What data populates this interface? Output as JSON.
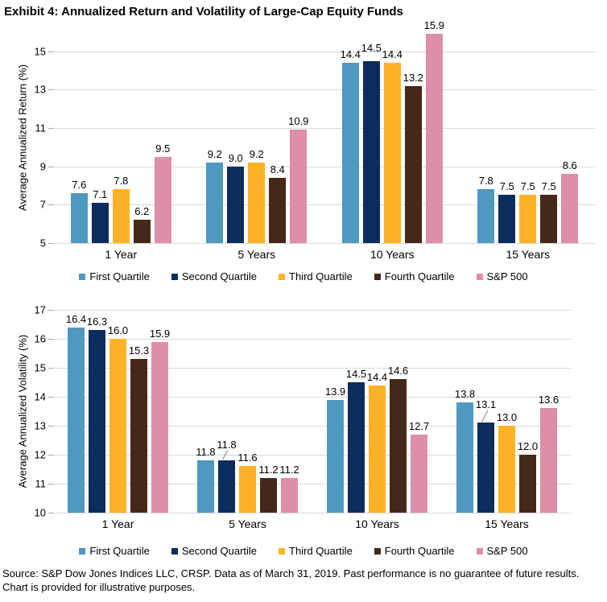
{
  "title": "Exhibit 4: Annualized Return and Volatility of Large-Cap Equity Funds",
  "source_note": "Source: S&P Dow Jones Indices LLC, CRSP. Data as of March 31, 2019. Past performance is no guarantee of future results. Chart is provided for illustrative purposes.",
  "colors": {
    "first_quartile": "#4f98bf",
    "second_quartile": "#0c2d5b",
    "third_quartile": "#feb327",
    "fourth_quartile": "#46281a",
    "sp500": "#de8ea6",
    "gridline": "#d9d9d9"
  },
  "chart_data": [
    {
      "type": "bar",
      "name": "annualized-return",
      "title": "",
      "xlabel": "",
      "ylabel": "Average Annualized Return (%)",
      "ylim": [
        5,
        16
      ],
      "yticks": [
        5,
        7,
        9,
        11,
        13,
        15
      ],
      "grid": true,
      "legend_position": "bottom",
      "categories": [
        "1 Year",
        "5 Years",
        "10 Years",
        "15 Years"
      ],
      "series": [
        {
          "name": "First Quartile",
          "color": "#4f98bf",
          "values": [
            7.6,
            9.2,
            14.4,
            7.8
          ]
        },
        {
          "name": "Second Quartile",
          "color": "#0c2d5b",
          "values": [
            7.1,
            9.0,
            14.5,
            7.5
          ]
        },
        {
          "name": "Third Quartile",
          "color": "#feb327",
          "values": [
            7.8,
            9.2,
            14.4,
            7.5
          ]
        },
        {
          "name": "Fourth Quartile",
          "color": "#46281a",
          "values": [
            6.2,
            8.4,
            13.2,
            7.5
          ]
        },
        {
          "name": "S&P 500",
          "color": "#de8ea6",
          "values": [
            9.5,
            10.9,
            15.9,
            8.6
          ]
        }
      ],
      "label_adjust": [
        {
          "cat": 2,
          "series": 1,
          "dy": 6,
          "leader": false
        }
      ]
    },
    {
      "type": "bar",
      "name": "annualized-volatility",
      "title": "",
      "xlabel": "",
      "ylabel": "Average Annualized Volatility (%)",
      "ylim": [
        10,
        17
      ],
      "yticks": [
        10,
        11,
        12,
        13,
        14,
        15,
        16,
        17
      ],
      "grid": true,
      "legend_position": "bottom",
      "categories": [
        "1 Year",
        "5 Years",
        "10 Years",
        "15 Years"
      ],
      "series": [
        {
          "name": "First Quartile",
          "color": "#4f98bf",
          "values": [
            16.4,
            11.8,
            13.9,
            13.8
          ]
        },
        {
          "name": "Second Quartile",
          "color": "#0c2d5b",
          "values": [
            16.3,
            11.8,
            14.5,
            13.1
          ]
        },
        {
          "name": "Third Quartile",
          "color": "#feb327",
          "values": [
            16.0,
            11.6,
            14.4,
            13.0
          ]
        },
        {
          "name": "Fourth Quartile",
          "color": "#46281a",
          "values": [
            15.3,
            11.2,
            14.6,
            12.0
          ]
        },
        {
          "name": "S&P 500",
          "color": "#de8ea6",
          "values": [
            15.9,
            11.2,
            12.7,
            13.6
          ]
        }
      ],
      "label_adjust": [
        {
          "cat": 1,
          "series": 1,
          "dy": 9,
          "leader": true
        },
        {
          "cat": 3,
          "series": 1,
          "dy": 12,
          "leader": true
        }
      ]
    }
  ]
}
